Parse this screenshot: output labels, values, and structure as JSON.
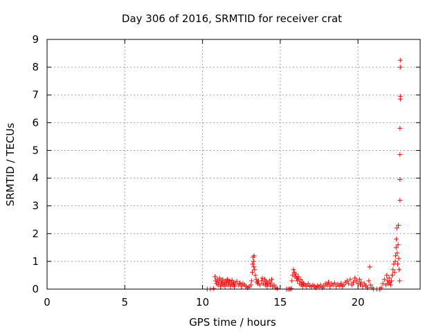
{
  "chart_data": {
    "type": "scatter",
    "title": "Day 306 of 2016, SRMTID for receiver crat",
    "xlabel": "GPS time / hours",
    "ylabel": "SRMTID / TECUs",
    "xlim": [
      0,
      24
    ],
    "ylim": [
      0,
      9
    ],
    "xticks": [
      0,
      5,
      10,
      15,
      20
    ],
    "xtick_labels": [
      "0",
      "5",
      "10",
      "15",
      "20"
    ],
    "yticks": [
      0,
      1,
      2,
      3,
      4,
      5,
      6,
      7,
      8,
      9
    ],
    "ytick_labels": [
      "0",
      "1",
      "2",
      "3",
      "4",
      "5",
      "6",
      "7",
      "8",
      "9"
    ],
    "grid": true,
    "marker": "+",
    "color": "#ff0000",
    "series": [
      {
        "name": "SRMTID",
        "points": [
          [
            10.3,
            0.0
          ],
          [
            10.5,
            0.0
          ],
          [
            10.7,
            0.02
          ],
          [
            10.8,
            0.45
          ],
          [
            10.85,
            0.3
          ],
          [
            10.9,
            0.2
          ],
          [
            10.95,
            0.35
          ],
          [
            11.0,
            0.15
          ],
          [
            11.05,
            0.25
          ],
          [
            11.1,
            0.4
          ],
          [
            11.15,
            0.1
          ],
          [
            11.2,
            0.3
          ],
          [
            11.25,
            0.2
          ],
          [
            11.3,
            0.35
          ],
          [
            11.35,
            0.15
          ],
          [
            11.4,
            0.25
          ],
          [
            11.45,
            0.1
          ],
          [
            11.5,
            0.3
          ],
          [
            11.55,
            0.2
          ],
          [
            11.6,
            0.35
          ],
          [
            11.65,
            0.15
          ],
          [
            11.7,
            0.25
          ],
          [
            11.75,
            0.3
          ],
          [
            11.8,
            0.1
          ],
          [
            11.85,
            0.2
          ],
          [
            11.9,
            0.32
          ],
          [
            11.95,
            0.15
          ],
          [
            12.0,
            0.25
          ],
          [
            12.05,
            0.1
          ],
          [
            12.1,
            0.2
          ],
          [
            12.2,
            0.28
          ],
          [
            12.3,
            0.15
          ],
          [
            12.4,
            0.22
          ],
          [
            12.5,
            0.1
          ],
          [
            12.6,
            0.2
          ],
          [
            12.7,
            0.15
          ],
          [
            12.8,
            0.1
          ],
          [
            12.9,
            0.05
          ],
          [
            13.0,
            0.08
          ],
          [
            13.1,
            0.15
          ],
          [
            13.15,
            0.3
          ],
          [
            13.2,
            0.6
          ],
          [
            13.22,
            0.9
          ],
          [
            13.25,
            1.15
          ],
          [
            13.28,
            1.0
          ],
          [
            13.3,
            0.8
          ],
          [
            13.32,
            1.2
          ],
          [
            13.35,
            0.7
          ],
          [
            13.4,
            0.5
          ],
          [
            13.45,
            0.35
          ],
          [
            13.5,
            0.25
          ],
          [
            13.55,
            0.2
          ],
          [
            13.6,
            0.3
          ],
          [
            13.7,
            0.15
          ],
          [
            13.8,
            0.3
          ],
          [
            13.85,
            0.4
          ],
          [
            13.9,
            0.2
          ],
          [
            14.0,
            0.35
          ],
          [
            14.05,
            0.15
          ],
          [
            14.1,
            0.25
          ],
          [
            14.15,
            0.1
          ],
          [
            14.2,
            0.2
          ],
          [
            14.3,
            0.3
          ],
          [
            14.35,
            0.15
          ],
          [
            14.4,
            0.22
          ],
          [
            14.45,
            0.35
          ],
          [
            14.5,
            0.1
          ],
          [
            14.6,
            0.15
          ],
          [
            14.7,
            0.05
          ],
          [
            14.8,
            0.02
          ],
          [
            15.4,
            0.0
          ],
          [
            15.5,
            0.0
          ],
          [
            15.6,
            0.0
          ],
          [
            15.7,
            0.02
          ],
          [
            15.75,
            0.3
          ],
          [
            15.8,
            0.5
          ],
          [
            15.85,
            0.7
          ],
          [
            15.9,
            0.6
          ],
          [
            15.95,
            0.45
          ],
          [
            16.0,
            0.55
          ],
          [
            16.05,
            0.4
          ],
          [
            16.1,
            0.3
          ],
          [
            16.15,
            0.45
          ],
          [
            16.2,
            0.35
          ],
          [
            16.25,
            0.2
          ],
          [
            16.3,
            0.35
          ],
          [
            16.35,
            0.15
          ],
          [
            16.4,
            0.25
          ],
          [
            16.45,
            0.1
          ],
          [
            16.5,
            0.2
          ],
          [
            16.6,
            0.15
          ],
          [
            16.7,
            0.1
          ],
          [
            16.8,
            0.2
          ],
          [
            16.9,
            0.12
          ],
          [
            17.0,
            0.08
          ],
          [
            17.1,
            0.15
          ],
          [
            17.2,
            0.1
          ],
          [
            17.3,
            0.05
          ],
          [
            17.4,
            0.12
          ],
          [
            17.5,
            0.08
          ],
          [
            17.6,
            0.15
          ],
          [
            17.7,
            0.05
          ],
          [
            17.8,
            0.1
          ],
          [
            17.9,
            0.2
          ],
          [
            18.0,
            0.15
          ],
          [
            18.1,
            0.25
          ],
          [
            18.2,
            0.1
          ],
          [
            18.3,
            0.2
          ],
          [
            18.4,
            0.15
          ],
          [
            18.5,
            0.22
          ],
          [
            18.6,
            0.1
          ],
          [
            18.7,
            0.18
          ],
          [
            18.8,
            0.12
          ],
          [
            18.9,
            0.2
          ],
          [
            19.0,
            0.1
          ],
          [
            19.1,
            0.15
          ],
          [
            19.2,
            0.25
          ],
          [
            19.3,
            0.3
          ],
          [
            19.4,
            0.2
          ],
          [
            19.5,
            0.35
          ],
          [
            19.6,
            0.15
          ],
          [
            19.7,
            0.25
          ],
          [
            19.8,
            0.4
          ],
          [
            19.9,
            0.3
          ],
          [
            20.0,
            0.2
          ],
          [
            20.1,
            0.35
          ],
          [
            20.15,
            0.15
          ],
          [
            20.2,
            0.25
          ],
          [
            20.3,
            0.1
          ],
          [
            20.4,
            0.2
          ],
          [
            20.5,
            0.12
          ],
          [
            20.6,
            0.05
          ],
          [
            20.7,
            0.3
          ],
          [
            20.75,
            0.8
          ],
          [
            20.8,
            0.15
          ],
          [
            20.9,
            0.05
          ],
          [
            21.0,
            0.0
          ],
          [
            21.2,
            0.0
          ],
          [
            21.4,
            0.0
          ],
          [
            21.5,
            0.05
          ],
          [
            21.6,
            0.2
          ],
          [
            21.7,
            0.35
          ],
          [
            21.8,
            0.15
          ],
          [
            21.85,
            0.5
          ],
          [
            21.9,
            0.3
          ],
          [
            21.95,
            0.2
          ],
          [
            22.0,
            0.4
          ],
          [
            22.05,
            0.25
          ],
          [
            22.1,
            0.15
          ],
          [
            22.15,
            0.3
          ],
          [
            22.2,
            0.5
          ],
          [
            22.25,
            0.7
          ],
          [
            22.3,
            0.9
          ],
          [
            22.35,
            0.6
          ],
          [
            22.4,
            1.0
          ],
          [
            22.42,
            1.2
          ],
          [
            22.45,
            1.5
          ],
          [
            22.47,
            1.8
          ],
          [
            22.5,
            2.2
          ],
          [
            22.52,
            1.3
          ],
          [
            22.55,
            0.9
          ],
          [
            22.58,
            1.6
          ],
          [
            22.6,
            2.3
          ],
          [
            22.62,
            1.1
          ],
          [
            22.65,
            0.7
          ],
          [
            22.68,
            0.3
          ],
          [
            22.7,
            3.2
          ],
          [
            22.7,
            3.95
          ],
          [
            22.7,
            4.85
          ],
          [
            22.7,
            5.8
          ],
          [
            22.72,
            6.85
          ],
          [
            22.72,
            6.95
          ],
          [
            22.72,
            8.0
          ],
          [
            22.72,
            8.25
          ]
        ]
      }
    ]
  }
}
